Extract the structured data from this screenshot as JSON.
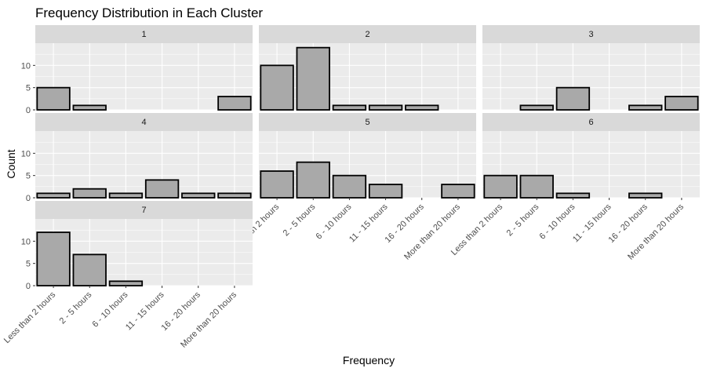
{
  "chart_data": {
    "type": "bar",
    "title": "Frequency Distribution in Each Cluster",
    "xlabel": "Frequency",
    "ylabel": "Count",
    "categories": [
      "Less than 2 hours",
      "2 - 5 hours",
      "6 - 10 hours",
      "11 - 15 hours",
      "16 - 20 hours",
      "More than 20 hours"
    ],
    "ylim": [
      0,
      15
    ],
    "yticks": [
      0,
      5,
      10
    ],
    "grid": true,
    "facets": [
      {
        "label": "1",
        "values": [
          5,
          1,
          0,
          0,
          0,
          3
        ]
      },
      {
        "label": "2",
        "values": [
          10,
          14,
          1,
          1,
          1,
          0
        ]
      },
      {
        "label": "3",
        "values": [
          0,
          1,
          5,
          0,
          1,
          3
        ]
      },
      {
        "label": "4",
        "values": [
          1,
          2,
          1,
          4,
          1,
          1
        ]
      },
      {
        "label": "5",
        "values": [
          6,
          8,
          5,
          3,
          0,
          3
        ]
      },
      {
        "label": "6",
        "values": [
          5,
          5,
          1,
          0,
          1,
          0
        ]
      },
      {
        "label": "7",
        "values": [
          12,
          7,
          1,
          0,
          0,
          0
        ]
      }
    ],
    "colors": {
      "bar_fill": "#a9a9a9",
      "bar_stroke": "#000000",
      "panel_bg": "#ebebeb",
      "strip_bg": "#d9d9d9",
      "grid": "#ffffff"
    }
  }
}
